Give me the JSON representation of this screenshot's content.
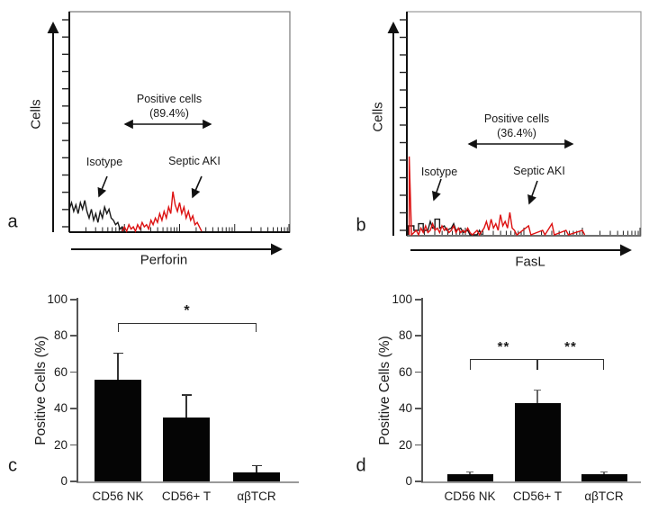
{
  "colors": {
    "septic_red": "#dd1111",
    "isotype_black": "#1a1a1a",
    "bar_black": "#050505",
    "axis_gray": "#999999",
    "axis_dark": "#111111"
  },
  "panel_a": {
    "letter": "a",
    "y_axis_label": "Cells",
    "x_axis_label": "Perforin",
    "annotation_line1": "Positive cells",
    "annotation_line2": "(89.4%)",
    "isotype_label": "Isotype",
    "sample_label": "Septic AKI"
  },
  "panel_b": {
    "letter": "b",
    "y_axis_label": "Cells",
    "x_axis_label": "FasL",
    "annotation_line1": "Positive cells",
    "annotation_line2": "(36.4%)",
    "isotype_label": "Isotype",
    "sample_label": "Septic AKI"
  },
  "panel_c": {
    "letter": "c",
    "y_axis_label": "Positive Cells (%)"
  },
  "panel_d": {
    "letter": "d",
    "y_axis_label": "Positive Cells (%)"
  },
  "chart_data": [
    {
      "panel": "a",
      "type": "area",
      "subtype": "flow-cytometry-histogram",
      "xlabel": "Perforin",
      "ylabel": "Cells",
      "x_scale": "log",
      "annotation": "Positive cells (89.4%)",
      "positive_gate_pct": 89.4,
      "series": [
        {
          "name": "Isotype",
          "color": "#1a1a1a",
          "points_pct": [
            [
              0,
              10
            ],
            [
              1,
              13
            ],
            [
              2,
              9
            ],
            [
              3,
              12
            ],
            [
              4,
              8
            ],
            [
              5,
              13
            ],
            [
              6,
              10
            ],
            [
              7,
              14
            ],
            [
              8,
              9
            ],
            [
              9,
              6
            ],
            [
              10,
              10
            ],
            [
              11,
              5
            ],
            [
              12,
              8
            ],
            [
              13,
              4
            ],
            [
              14,
              9
            ],
            [
              15,
              6
            ],
            [
              16,
              11
            ],
            [
              17,
              8
            ],
            [
              18,
              10
            ],
            [
              19,
              6
            ],
            [
              20,
              5
            ],
            [
              21,
              3
            ],
            [
              22,
              4
            ],
            [
              23,
              1
            ],
            [
              24,
              2
            ],
            [
              25,
              0
            ]
          ]
        },
        {
          "name": "Septic AKI",
          "color": "#dd1111",
          "points_pct": [
            [
              24,
              0
            ],
            [
              25,
              2
            ],
            [
              26,
              0
            ],
            [
              27,
              3
            ],
            [
              28,
              1
            ],
            [
              29,
              2
            ],
            [
              30,
              0
            ],
            [
              31,
              3
            ],
            [
              32,
              1
            ],
            [
              33,
              4
            ],
            [
              34,
              2
            ],
            [
              35,
              3
            ],
            [
              36,
              1
            ],
            [
              37,
              5
            ],
            [
              38,
              3
            ],
            [
              39,
              6
            ],
            [
              40,
              4
            ],
            [
              41,
              8
            ],
            [
              42,
              5
            ],
            [
              43,
              9
            ],
            [
              44,
              6
            ],
            [
              45,
              11
            ],
            [
              46,
              8
            ],
            [
              47,
              18
            ],
            [
              48,
              12
            ],
            [
              49,
              9
            ],
            [
              50,
              13
            ],
            [
              51,
              8
            ],
            [
              52,
              11
            ],
            [
              53,
              6
            ],
            [
              54,
              9
            ],
            [
              55,
              5
            ],
            [
              56,
              7
            ],
            [
              57,
              3
            ],
            [
              58,
              4
            ],
            [
              59,
              2
            ],
            [
              60,
              0
            ]
          ]
        }
      ]
    },
    {
      "panel": "b",
      "type": "area",
      "subtype": "flow-cytometry-histogram",
      "xlabel": "FasL",
      "ylabel": "Cells",
      "x_scale": "log",
      "annotation": "Positive cells (36.4%)",
      "positive_gate_pct": 36.4,
      "series": [
        {
          "name": "Isotype",
          "color": "#1a1a1a",
          "points_pct": [
            [
              0.5,
              0
            ],
            [
              0.5,
              4
            ],
            [
              3,
              4
            ],
            [
              3,
              2
            ],
            [
              5,
              2
            ],
            [
              5,
              5
            ],
            [
              7,
              5
            ],
            [
              7,
              2
            ],
            [
              9,
              2
            ],
            [
              10,
              6
            ],
            [
              11,
              3
            ],
            [
              12,
              3
            ],
            [
              12,
              7
            ],
            [
              14,
              7
            ],
            [
              14,
              3
            ],
            [
              16,
              4
            ],
            [
              17,
              2
            ],
            [
              19,
              3
            ],
            [
              20,
              5
            ],
            [
              21,
              2
            ],
            [
              23,
              3
            ],
            [
              24,
              1
            ],
            [
              26,
              2
            ],
            [
              27,
              0
            ],
            [
              30,
              0
            ],
            [
              31,
              2
            ],
            [
              32,
              0
            ]
          ]
        },
        {
          "name": "Septic AKI",
          "color": "#dd1111",
          "points_pct": [
            [
              1,
              0
            ],
            [
              1,
              35
            ],
            [
              2,
              0
            ],
            [
              4,
              2
            ],
            [
              5,
              0
            ],
            [
              6,
              3
            ],
            [
              7,
              1
            ],
            [
              8,
              4
            ],
            [
              9,
              1
            ],
            [
              10,
              2
            ],
            [
              11,
              5
            ],
            [
              12,
              2
            ],
            [
              13,
              3
            ],
            [
              14,
              1
            ],
            [
              15,
              4
            ],
            [
              16,
              2
            ],
            [
              17,
              3
            ],
            [
              18,
              1
            ],
            [
              19,
              2
            ],
            [
              20,
              4
            ],
            [
              21,
              1
            ],
            [
              22,
              3
            ],
            [
              23,
              1
            ],
            [
              24,
              2
            ],
            [
              25,
              1
            ],
            [
              26,
              3
            ],
            [
              27,
              1
            ],
            [
              28,
              0
            ],
            [
              30,
              2
            ],
            [
              31,
              0
            ],
            [
              33,
              3
            ],
            [
              34,
              6
            ],
            [
              35,
              2
            ],
            [
              36,
              7
            ],
            [
              37,
              3
            ],
            [
              38,
              5
            ],
            [
              39,
              2
            ],
            [
              40,
              9
            ],
            [
              41,
              4
            ],
            [
              42,
              6
            ],
            [
              43,
              3
            ],
            [
              44,
              10
            ],
            [
              45,
              3
            ],
            [
              46,
              2
            ],
            [
              47,
              0
            ],
            [
              52,
              4
            ],
            [
              53,
              0
            ],
            [
              58,
              2
            ],
            [
              59,
              0
            ],
            [
              62,
              5
            ],
            [
              63,
              0
            ],
            [
              68,
              2
            ],
            [
              69,
              0
            ],
            [
              75,
              2
            ],
            [
              76,
              0
            ]
          ]
        }
      ]
    },
    {
      "panel": "c",
      "type": "bar",
      "categories": [
        "CD56 NK",
        "CD56+ T",
        "αβTCR"
      ],
      "values": [
        56,
        35,
        5
      ],
      "errors": [
        15,
        13,
        4
      ],
      "ylabel": "Positive Cells (%)",
      "ylim": [
        0,
        100
      ],
      "yticks": [
        0,
        20,
        40,
        60,
        80,
        100
      ],
      "bar_color": "#050505",
      "significance": [
        {
          "from": 0,
          "to": 2,
          "label": "*",
          "y_value": 87
        }
      ]
    },
    {
      "panel": "d",
      "type": "bar",
      "categories": [
        "CD56 NK",
        "CD56+ T",
        "αβTCR"
      ],
      "values": [
        4,
        43,
        4
      ],
      "errors": [
        1.5,
        7.5,
        1.5
      ],
      "ylabel": "Positive Cells (%)",
      "ylim": [
        0,
        100
      ],
      "yticks": [
        0,
        20,
        40,
        60,
        80,
        100
      ],
      "bar_color": "#050505",
      "significance": [
        {
          "from": 0,
          "to": 1,
          "label": "**",
          "y_value": 67.5
        },
        {
          "from": 1,
          "to": 2,
          "label": "**",
          "y_value": 67.5
        }
      ]
    }
  ]
}
